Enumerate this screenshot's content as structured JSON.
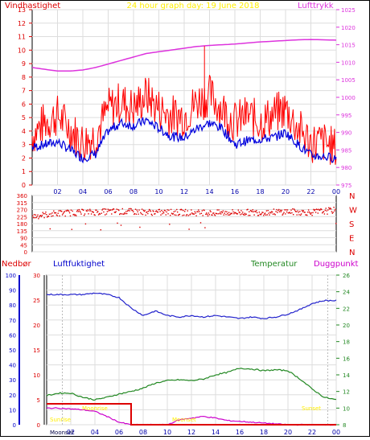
{
  "header": {
    "left_title": "Vindhastighet",
    "center_title": "24 hour graph day:  19 June 2018",
    "right_title": "Lufttrykk"
  },
  "colors": {
    "gust": "#ff0000",
    "avg": "#0000dd",
    "pressure": "#dd33dd",
    "direction": "#dd0000",
    "humidity": "#2222cc",
    "temperature": "#228822",
    "dewpoint": "#cc00cc",
    "rain": "#dd0000",
    "sun": "#ffee00",
    "grid": "#dddddd"
  },
  "time_labels": [
    "02",
    "04",
    "06",
    "08",
    "10",
    "12",
    "14",
    "16",
    "18",
    "20",
    "22",
    "00"
  ],
  "wind_panel": {
    "left_ticks": [
      "0",
      "1",
      "2",
      "3",
      "4",
      "5",
      "6",
      "7",
      "8",
      "9",
      "10",
      "11",
      "12",
      "13"
    ],
    "right_ticks": [
      "975",
      "980",
      "985",
      "990",
      "995",
      "1000",
      "1005",
      "1010",
      "1015",
      "1020",
      "1025"
    ]
  },
  "direction_panel": {
    "left_ticks": [
      "0",
      "45",
      "90",
      "135",
      "180",
      "225",
      "270",
      "315",
      "360"
    ],
    "compass": [
      "N",
      "W",
      "S",
      "E",
      "N"
    ]
  },
  "bottom_panel": {
    "labels": {
      "rain": "Nedbør",
      "humidity": "Luftfuktighet",
      "temperature": "Temperatur",
      "dewpoint": "Duggpunkt"
    },
    "rain_ticks": [
      "0",
      "10",
      "20",
      "30",
      "40",
      "50",
      "60",
      "70",
      "80",
      "90",
      "100"
    ],
    "small_ticks": [
      "0",
      "5",
      "10",
      "15",
      "20",
      "25",
      "30"
    ],
    "right_ticks": [
      "8",
      "10",
      "12",
      "14",
      "16",
      "18",
      "20",
      "22",
      "24",
      "26"
    ],
    "sun_labels": {
      "rise_left": "Sunrise",
      "rise_right": "Sunset",
      "dawn_left": "Moonrise",
      "dawn_right": "Moonset",
      "bottom_center": "Moonset",
      "bottom_left": "Moonset"
    }
  },
  "chart_data": [
    {
      "type": "line",
      "title": "24 hour graph day:  19 June 2018",
      "xlabel": "",
      "ylabel": "Vindhastighet",
      "y2label": "Lufttrykk",
      "x": [
        "00",
        "01",
        "02",
        "03",
        "04",
        "05",
        "06",
        "07",
        "08",
        "09",
        "10",
        "11",
        "12",
        "13",
        "14",
        "15",
        "16",
        "17",
        "18",
        "19",
        "20",
        "21",
        "22",
        "23",
        "24"
      ],
      "ylim": [
        0,
        13
      ],
      "y2lim": [
        975,
        1025
      ],
      "series": [
        {
          "name": "gust",
          "axis": "left",
          "values": [
            3.5,
            4.5,
            5.0,
            4.0,
            3.0,
            3.5,
            5.5,
            6.0,
            5.5,
            6.5,
            5.5,
            5.0,
            5.0,
            6.0,
            6.5,
            5.5,
            4.5,
            5.0,
            4.5,
            5.0,
            5.5,
            4.0,
            3.0,
            3.0,
            2.5
          ]
        },
        {
          "name": "average",
          "axis": "left",
          "values": [
            2.8,
            3.0,
            3.2,
            2.6,
            2.0,
            2.3,
            4.0,
            4.6,
            4.4,
            4.8,
            4.2,
            3.6,
            3.5,
            4.2,
            4.6,
            4.2,
            3.0,
            3.3,
            3.4,
            3.5,
            3.9,
            3.0,
            2.2,
            2.1,
            2.0
          ]
        },
        {
          "name": "pressure",
          "axis": "right",
          "values": [
            1008.5,
            1008.0,
            1007.5,
            1007.5,
            1007.8,
            1008.5,
            1009.5,
            1010.5,
            1011.5,
            1012.5,
            1013.0,
            1013.5,
            1014.0,
            1014.5,
            1014.8,
            1015.0,
            1015.2,
            1015.5,
            1015.8,
            1016.0,
            1016.2,
            1016.4,
            1016.5,
            1016.4,
            1016.3
          ]
        }
      ]
    },
    {
      "type": "scatter",
      "title": "",
      "xlabel": "",
      "ylabel": "",
      "x": [
        "00",
        "02",
        "04",
        "06",
        "08",
        "10",
        "12",
        "14",
        "16",
        "18",
        "20",
        "22",
        "24"
      ],
      "ylim": [
        0,
        360
      ],
      "series": [
        {
          "name": "direction",
          "values": [
            230,
            250,
            255,
            260,
            260,
            255,
            255,
            250,
            255,
            255,
            260,
            255,
            270
          ]
        }
      ]
    },
    {
      "type": "line",
      "title": "",
      "xlabel": "",
      "ylabel": "Nedbør",
      "x": [
        "00",
        "01",
        "02",
        "03",
        "04",
        "05",
        "06",
        "07",
        "08",
        "09",
        "10",
        "11",
        "12",
        "13",
        "14",
        "15",
        "16",
        "17",
        "18",
        "19",
        "20",
        "21",
        "22",
        "23",
        "24"
      ],
      "ylim": [
        0,
        100
      ],
      "y2lim": [
        8,
        26
      ],
      "series": [
        {
          "name": "Luftfuktighet",
          "axis": "left",
          "values": [
            87,
            87,
            87,
            87,
            88,
            87,
            85,
            78,
            73,
            76,
            73,
            72,
            73,
            72,
            73,
            72,
            71,
            72,
            71,
            72,
            74,
            77,
            81,
            83,
            83
          ]
        },
        {
          "name": "Temperatur",
          "axis": "right",
          "values": [
            11.5,
            11.8,
            11.8,
            11.3,
            11.0,
            11.3,
            11.7,
            12.0,
            12.4,
            13.0,
            13.3,
            13.4,
            13.3,
            13.5,
            14.0,
            14.3,
            14.8,
            14.7,
            14.5,
            14.6,
            14.5,
            13.5,
            12.3,
            11.3,
            11.0
          ]
        },
        {
          "name": "Duggpunkt",
          "axis": "right",
          "values": [
            10.0,
            10.0,
            9.9,
            9.8,
            9.6,
            9.0,
            8.3,
            8.0,
            8.0,
            8.0,
            8.0,
            8.6,
            8.8,
            9.0,
            8.8,
            8.5,
            8.4,
            8.3,
            8.2,
            8.1,
            8.0,
            8.0,
            8.0,
            8.0,
            8.0
          ]
        },
        {
          "name": "Nedbør",
          "axis": "left",
          "values": [
            14,
            14,
            14,
            14,
            14,
            14,
            14,
            0,
            0,
            0,
            0,
            0,
            0,
            0,
            0,
            0,
            0,
            0,
            0,
            0,
            0,
            0,
            0,
            0,
            0
          ]
        }
      ]
    }
  ]
}
